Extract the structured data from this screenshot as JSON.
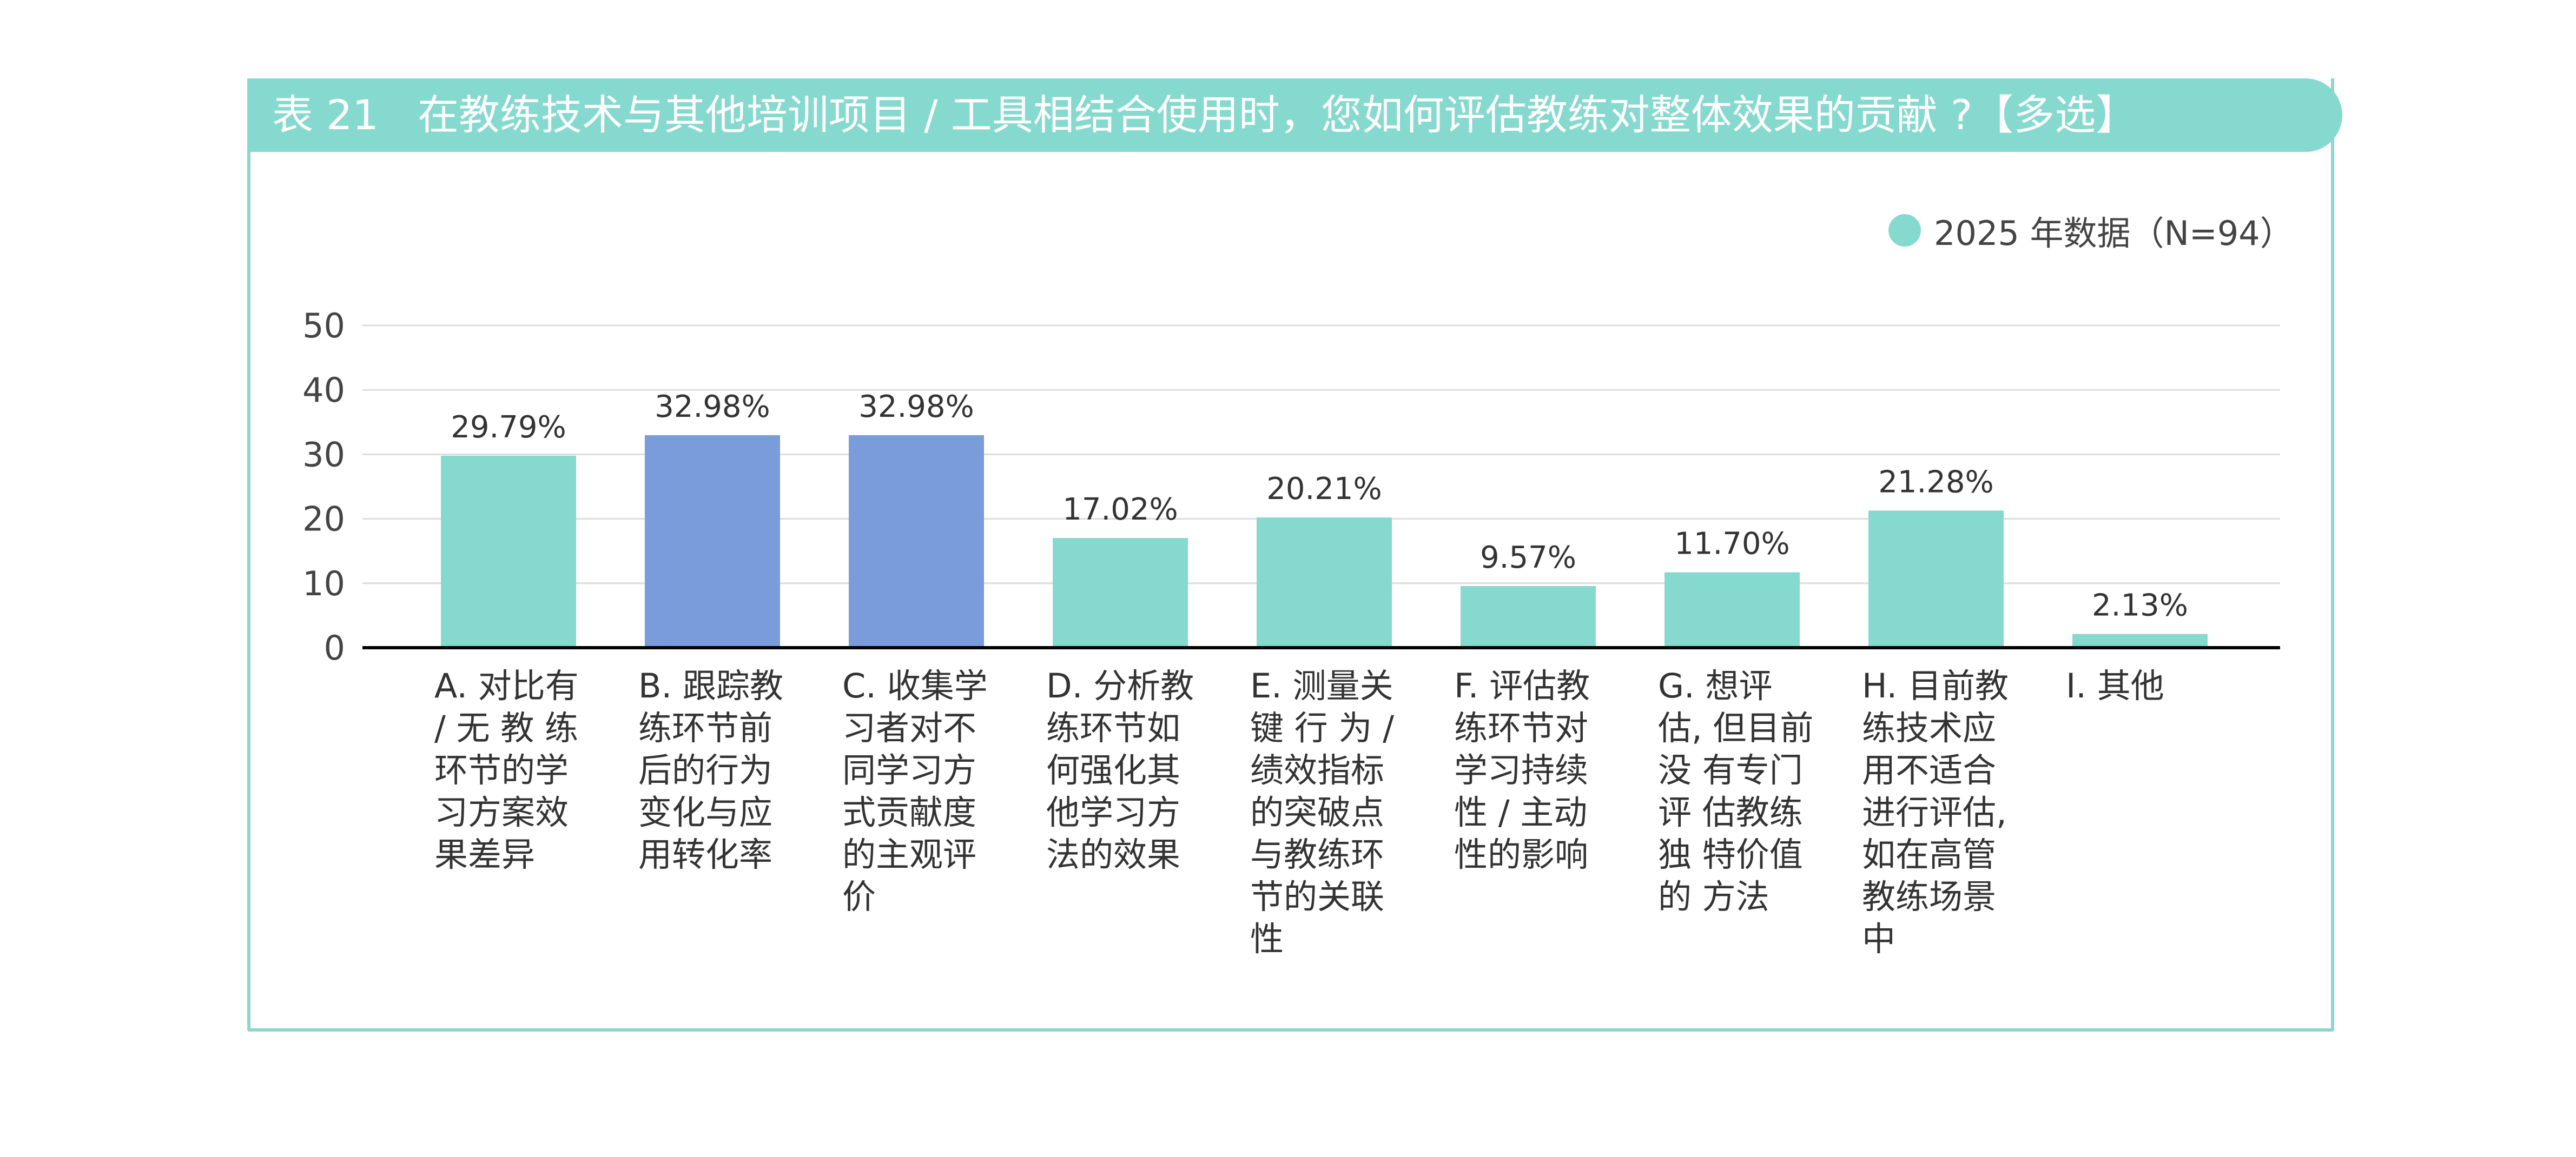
{
  "header": {
    "table_no": "表 21",
    "title": "在教练技术与其他培训项目 / 工具相结合使用时，您如何评估教练对整体效果的贡献 ?【多选】"
  },
  "legend": {
    "label": "2025 年数据（N=94）",
    "color": "#86d9cf"
  },
  "colors": {
    "default_bar": "#86d9cf",
    "highlight_bar": "#7a9cda",
    "grid": "#dddddd",
    "axis": "#000000"
  },
  "chart_data": {
    "type": "bar",
    "categories": [
      "A. 对比有 / 无 教 练 环节的学 习方案效 果差异",
      "B. 跟踪教 练环节前 后的行为 变化与应 用转化率",
      "C. 收集学 习者对不 同学习方 式贡献度 的主观评 价",
      "D. 分析教 练环节如 何强化其 他学习方 法的效果",
      "E. 测量关 键 行 为 / 绩效指标 的突破点 与教练环 节的关联 性",
      "F. 评估教 练环节对 学习持续 性 / 主动 性的影响",
      "G. 想评估, 但目前没 有专门评 估教练独 特价值的 方法",
      "H. 目前教 练技术应 用不适合 进行评估, 如在高管 教练场景 中",
      "I. 其他"
    ],
    "values": [
      29.79,
      32.98,
      32.98,
      17.02,
      20.21,
      9.57,
      11.7,
      21.28,
      2.13
    ],
    "data_labels": [
      "29.79%",
      "32.98%",
      "32.98%",
      "17.02%",
      "20.21%",
      "9.57%",
      "11.70%",
      "21.28%",
      "2.13%"
    ],
    "highlight": [
      false,
      true,
      true,
      false,
      false,
      false,
      false,
      false,
      false
    ],
    "series": [
      {
        "name": "2025 年数据（N=94）",
        "values": [
          29.79,
          32.98,
          32.98,
          17.02,
          20.21,
          9.57,
          11.7,
          21.28,
          2.13
        ]
      }
    ],
    "yticks": [
      0,
      10,
      20,
      30,
      40,
      50
    ],
    "ylim": [
      0,
      50
    ],
    "grid": true,
    "legend_position": "top-right",
    "title": "",
    "xlabel": "",
    "ylabel": ""
  }
}
